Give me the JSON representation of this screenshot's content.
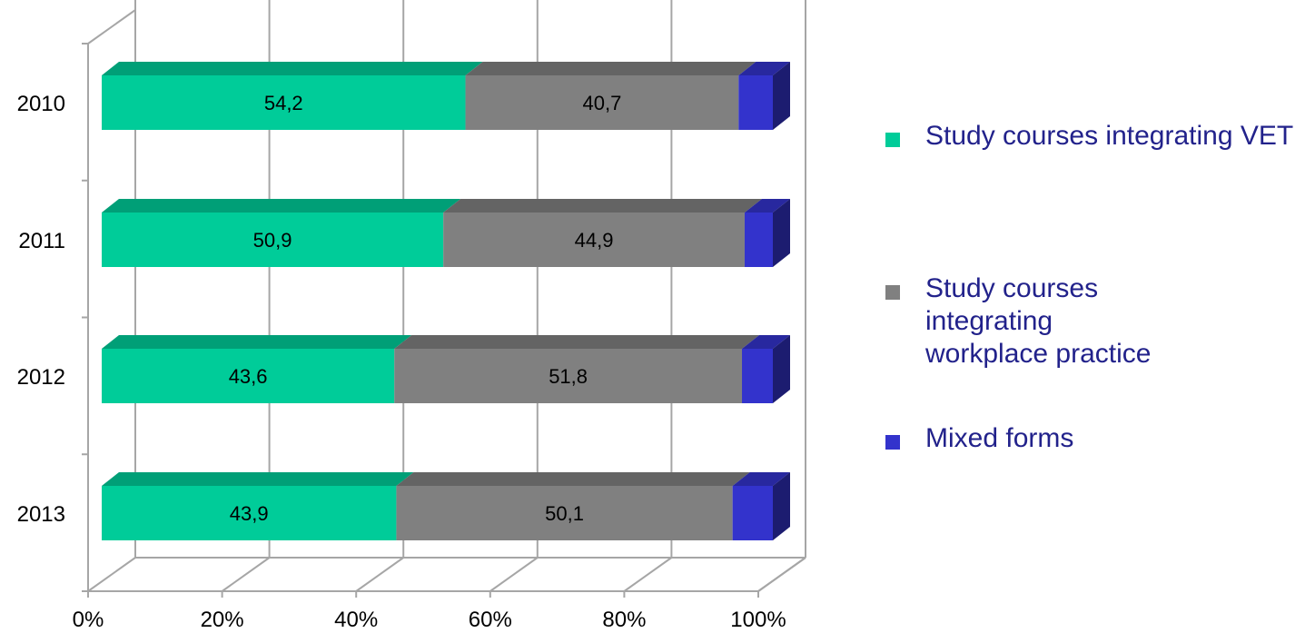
{
  "chart_data": {
    "type": "bar",
    "orientation": "horizontal",
    "stacked": "percent",
    "style": "3d",
    "categories": [
      "2010",
      "2011",
      "2012",
      "2013"
    ],
    "series": [
      {
        "name": "Study courses integrating VET",
        "values": [
          54.2,
          50.9,
          43.6,
          43.9
        ],
        "labels": [
          "54,2",
          "50,9",
          "43,6",
          "43,9"
        ],
        "color": "#00cc99"
      },
      {
        "name": "Study courses integrating workplace practice",
        "values": [
          40.7,
          44.9,
          51.8,
          50.1
        ],
        "labels": [
          "40,7",
          "44,9",
          "51,8",
          "50,1"
        ],
        "color": "#808080"
      },
      {
        "name": "Mixed forms",
        "values": [
          5.1,
          4.2,
          4.6,
          6.0
        ],
        "color": "#3333cc"
      }
    ],
    "x_ticks": [
      "0%",
      "20%",
      "40%",
      "60%",
      "80%",
      "100%"
    ],
    "xlim": [
      0,
      100
    ],
    "grid": true,
    "legend_position": "right"
  }
}
